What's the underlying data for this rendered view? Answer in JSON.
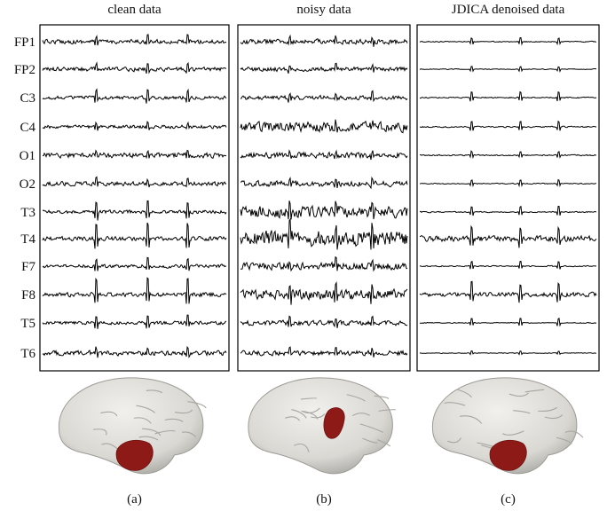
{
  "panels": [
    {
      "title": "clean data",
      "caption": "(a)"
    },
    {
      "title": "noisy data",
      "caption": "(b)"
    },
    {
      "title": "JDICA denoised data",
      "caption": "(c)"
    }
  ],
  "channels": [
    "FP1",
    "FP2",
    "C3",
    "C4",
    "O1",
    "O2",
    "T3",
    "T4",
    "F7",
    "F8",
    "T5",
    "T6"
  ]
}
